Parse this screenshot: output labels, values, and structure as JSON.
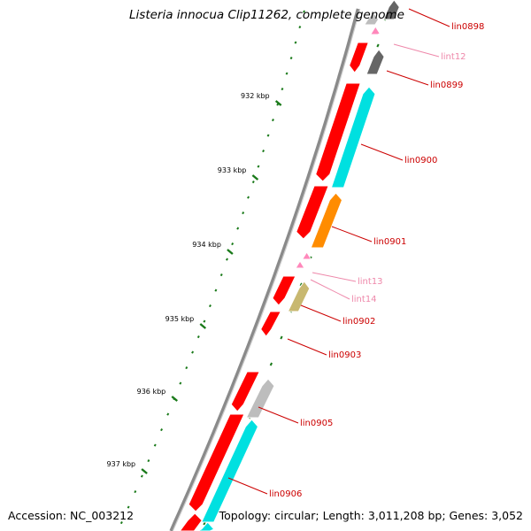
{
  "title": "Listeria innocua Clip11262, complete genome",
  "accession": "Accession: NC_003212",
  "summary": "Topology: circular; Length: 3,011,208 bp; Genes: 3,052",
  "colors": {
    "backbone": "#8a8a8a",
    "backbone_light": "#cfcfcf",
    "tick": "#1a7a1a",
    "gene_red": "#ff0000",
    "gene_cyan": "#00e0e0",
    "gene_orange": "#ff8c00",
    "gene_olive": "#c8b870",
    "gene_grey": "#666666",
    "gene_lightgrey": "#bdbdbd",
    "rna_pink": "#ff88bb",
    "label_red": "#cc0000",
    "label_pink": "#ee88aa"
  },
  "scale_labels": [
    "932 kbp",
    "933 kbp",
    "934 kbp",
    "935 kbp",
    "936 kbp",
    "937 kbp"
  ],
  "gene_labels": [
    {
      "text": "lin0898",
      "color": "label_red"
    },
    {
      "text": "lint12",
      "color": "label_pink"
    },
    {
      "text": "lin0899",
      "color": "label_red"
    },
    {
      "text": "lin0900",
      "color": "label_red"
    },
    {
      "text": "lin0901",
      "color": "label_red"
    },
    {
      "text": "lint13",
      "color": "label_pink"
    },
    {
      "text": "lint14",
      "color": "label_pink"
    },
    {
      "text": "lin0902",
      "color": "label_red"
    },
    {
      "text": "lin0903",
      "color": "label_red"
    },
    {
      "text": "lin0905",
      "color": "label_red"
    },
    {
      "text": "lin0906",
      "color": "label_red"
    }
  ]
}
